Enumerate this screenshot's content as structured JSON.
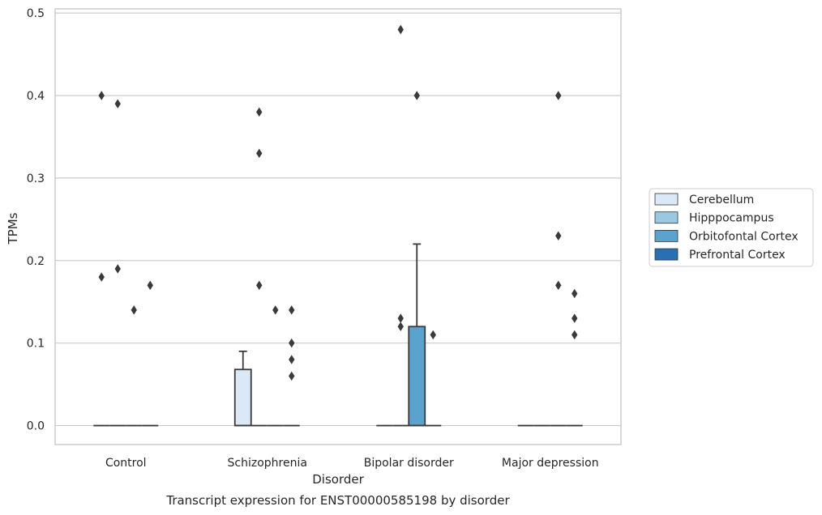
{
  "chart_data": {
    "type": "box",
    "title": "Transcript expression for ENST00000585198 by disorder",
    "xlabel": "Disorder",
    "ylabel": "TPMs",
    "ylim": [
      -0.023,
      0.505
    ],
    "yticks": [
      0.0,
      0.1,
      0.2,
      0.3,
      0.4,
      0.5
    ],
    "ytick_labels": [
      "0.0",
      "0.1",
      "0.2",
      "0.3",
      "0.4",
      "0.5"
    ],
    "grid": true,
    "legend_position": "center-right",
    "categories": [
      "Control",
      "Schizophrenia",
      "Bipolar disorder",
      "Major depression"
    ],
    "series": [
      {
        "name": "Cerebellum",
        "color": "#dbe9f6",
        "boxes": [
          {
            "q1": 0.0,
            "median": 0.0,
            "q3": 0.0,
            "whisker_low": 0.0,
            "whisker_high": 0.0,
            "outliers": [
              0.4,
              0.18
            ]
          },
          {
            "q1": 0.0,
            "median": 0.0,
            "q3": 0.068,
            "whisker_low": 0.0,
            "whisker_high": 0.09,
            "outliers": []
          },
          {
            "q1": 0.0,
            "median": 0.0,
            "q3": 0.0,
            "whisker_low": 0.0,
            "whisker_high": 0.0,
            "outliers": []
          },
          {
            "q1": 0.0,
            "median": 0.0,
            "q3": 0.0,
            "whisker_low": 0.0,
            "whisker_high": 0.0,
            "outliers": []
          }
        ]
      },
      {
        "name": "Hipppocampus",
        "color": "#9ac8e0",
        "boxes": [
          {
            "q1": 0.0,
            "median": 0.0,
            "q3": 0.0,
            "whisker_low": 0.0,
            "whisker_high": 0.0,
            "outliers": [
              0.39,
              0.19
            ]
          },
          {
            "q1": 0.0,
            "median": 0.0,
            "q3": 0.0,
            "whisker_low": 0.0,
            "whisker_high": 0.0,
            "outliers": [
              0.38,
              0.33,
              0.17
            ]
          },
          {
            "q1": 0.0,
            "median": 0.0,
            "q3": 0.0,
            "whisker_low": 0.0,
            "whisker_high": 0.0,
            "outliers": [
              0.48,
              0.13,
              0.12
            ]
          },
          {
            "q1": 0.0,
            "median": 0.0,
            "q3": 0.0,
            "whisker_low": 0.0,
            "whisker_high": 0.0,
            "outliers": []
          }
        ]
      },
      {
        "name": "Orbitofontal Cortex",
        "color": "#5ba3cf",
        "boxes": [
          {
            "q1": 0.0,
            "median": 0.0,
            "q3": 0.0,
            "whisker_low": 0.0,
            "whisker_high": 0.0,
            "outliers": [
              0.14
            ]
          },
          {
            "q1": 0.0,
            "median": 0.0,
            "q3": 0.0,
            "whisker_low": 0.0,
            "whisker_high": 0.0,
            "outliers": [
              0.14
            ]
          },
          {
            "q1": 0.0,
            "median": 0.0,
            "q3": 0.12,
            "whisker_low": 0.0,
            "whisker_high": 0.22,
            "outliers": [
              0.4
            ]
          },
          {
            "q1": 0.0,
            "median": 0.0,
            "q3": 0.0,
            "whisker_low": 0.0,
            "whisker_high": 0.0,
            "outliers": [
              0.4,
              0.23,
              0.17
            ]
          }
        ]
      },
      {
        "name": "Prefrontal Cortex",
        "color": "#2a6fb0",
        "boxes": [
          {
            "q1": 0.0,
            "median": 0.0,
            "q3": 0.0,
            "whisker_low": 0.0,
            "whisker_high": 0.0,
            "outliers": [
              0.17
            ]
          },
          {
            "q1": 0.0,
            "median": 0.0,
            "q3": 0.0,
            "whisker_low": 0.0,
            "whisker_high": 0.0,
            "outliers": [
              0.14,
              0.1,
              0.08,
              0.06
            ]
          },
          {
            "q1": 0.0,
            "median": 0.0,
            "q3": 0.0,
            "whisker_low": 0.0,
            "whisker_high": 0.0,
            "outliers": [
              0.11
            ]
          },
          {
            "q1": 0.0,
            "median": 0.0,
            "q3": 0.0,
            "whisker_low": 0.0,
            "whisker_high": 0.0,
            "outliers": [
              0.16,
              0.13,
              0.11
            ]
          }
        ]
      }
    ]
  }
}
